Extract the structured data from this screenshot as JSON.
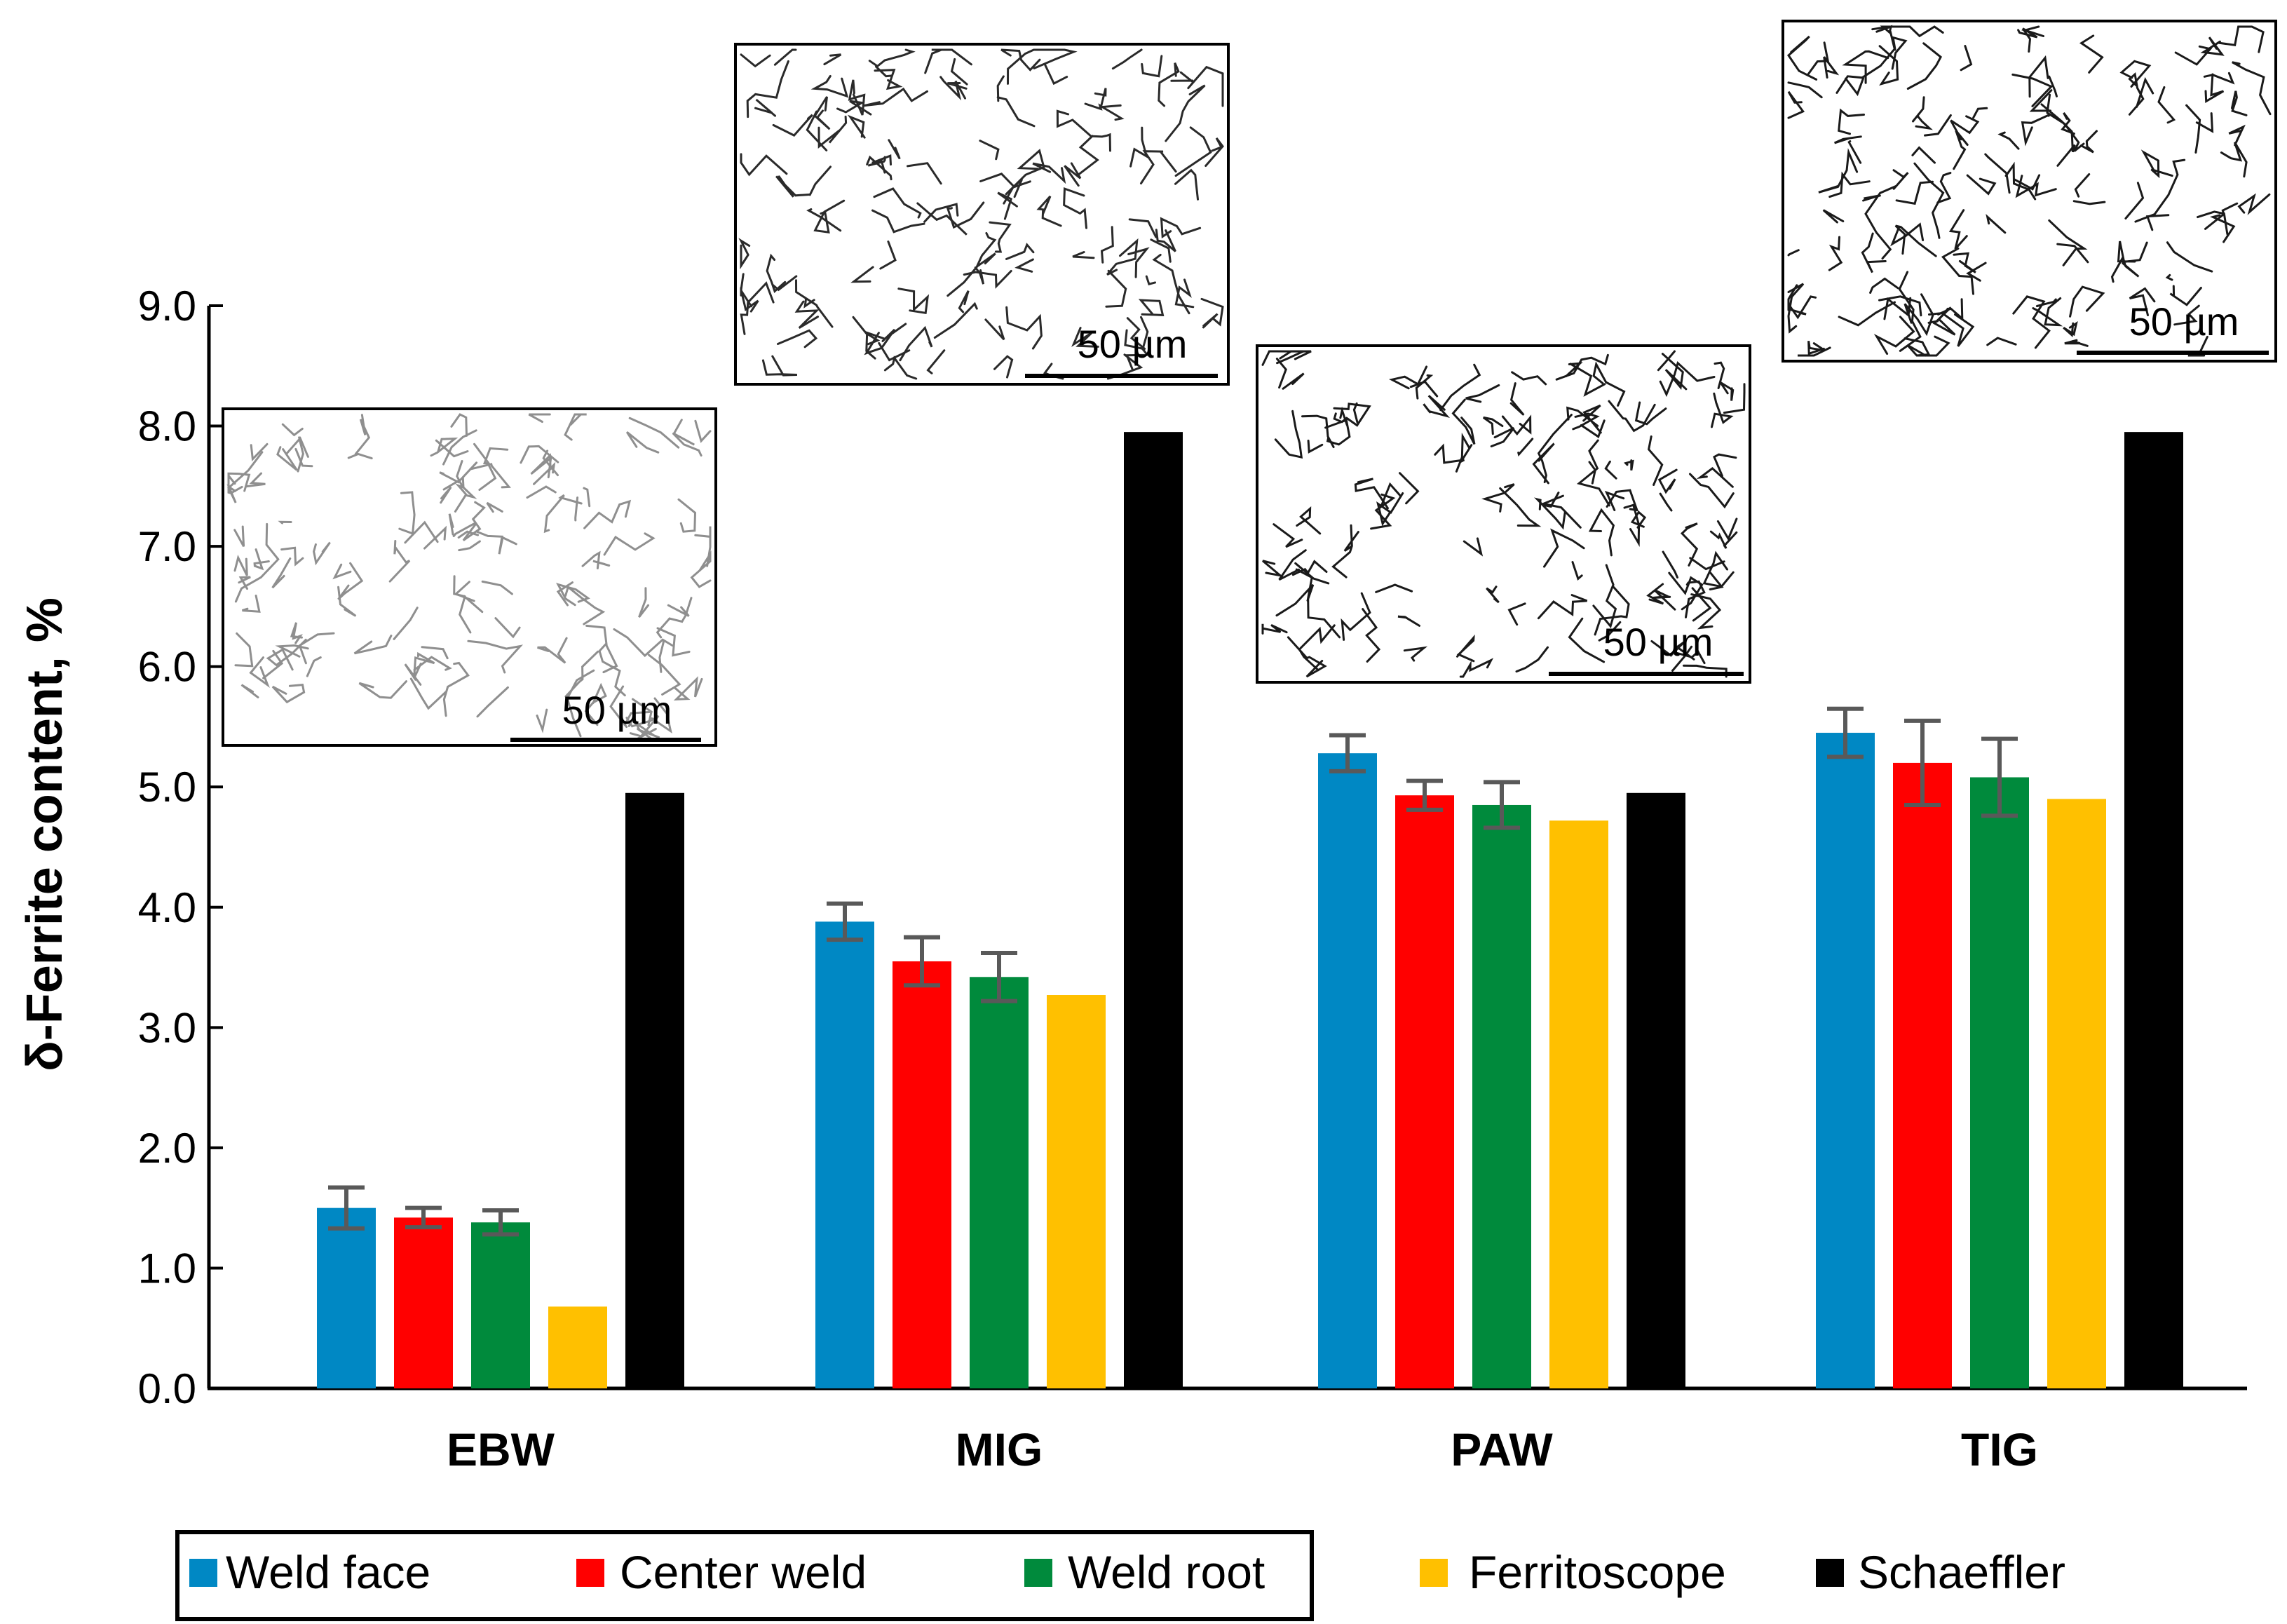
{
  "chart_data": {
    "type": "bar",
    "title": "",
    "xlabel": "",
    "ylabel": "δ-Ferrite  content, %",
    "ylim": [
      0,
      9
    ],
    "yticks": [
      "0.0",
      "1.0",
      "2.0",
      "3.0",
      "4.0",
      "5.0",
      "6.0",
      "7.0",
      "8.0",
      "9.0"
    ],
    "categories": [
      "EBW",
      "MIG",
      "PAW",
      "TIG"
    ],
    "series": [
      {
        "name": "Weld face",
        "color": "#0088c4",
        "values": [
          1.5,
          3.88,
          5.28,
          5.45
        ],
        "errors": [
          0.17,
          0.15,
          0.15,
          0.2
        ]
      },
      {
        "name": "Center weld",
        "color": "#ff0000",
        "values": [
          1.42,
          3.55,
          4.93,
          5.2
        ],
        "errors": [
          0.08,
          0.2,
          0.12,
          0.35
        ]
      },
      {
        "name": "Weld root",
        "color": "#008a3c",
        "values": [
          1.38,
          3.42,
          4.85,
          5.08
        ],
        "errors": [
          0.1,
          0.2,
          0.19,
          0.32
        ]
      },
      {
        "name": "Ferritoscope",
        "color": "#ffc000",
        "values": [
          0.68,
          3.27,
          4.72,
          4.9
        ],
        "errors": null
      },
      {
        "name": "Schaeffler",
        "color": "#000000",
        "values": [
          4.95,
          7.95,
          4.95,
          7.95
        ],
        "errors": null
      }
    ],
    "legend": {
      "placement": "bottom",
      "boxed_entries": [
        "Weld face",
        "Center weld",
        "Weld root"
      ]
    },
    "micrographs": [
      {
        "name": "EBW micrograph",
        "scale_label": "50 µm"
      },
      {
        "name": "MIG micrograph",
        "scale_label": "50 µm"
      },
      {
        "name": "PAW micrograph",
        "scale_label": "50 µm"
      },
      {
        "name": "TIG micrograph",
        "scale_label": "50 µm"
      }
    ]
  }
}
